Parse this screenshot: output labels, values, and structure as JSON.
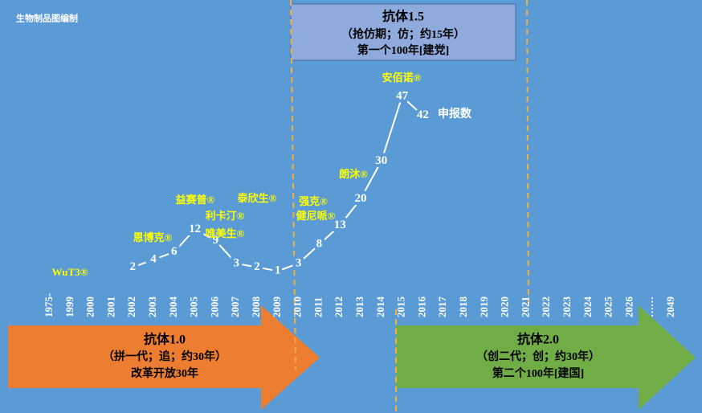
{
  "header_note": "生物制品图编制",
  "chart_data": {
    "type": "line",
    "series_label": "申报数",
    "categories": [
      "1975-",
      "1999",
      "2000",
      "2001",
      "2002",
      "2003",
      "2004",
      "2005",
      "2006",
      "2007",
      "2008",
      "2009",
      "2010",
      "2011",
      "2012",
      "2013",
      "2014",
      "2015",
      "2016",
      "2017",
      "2018",
      "2019",
      "2020",
      "2021",
      "2022",
      "2023",
      "2024",
      "2025",
      "2026",
      "……",
      "2049"
    ],
    "values": [
      null,
      null,
      null,
      null,
      2,
      4,
      6,
      12,
      9,
      3,
      2,
      1,
      3,
      8,
      13,
      20,
      30,
      47,
      42,
      null,
      null,
      null,
      null,
      null,
      null,
      null,
      null,
      null,
      null,
      null,
      null
    ],
    "ylim": [
      0,
      50
    ],
    "color": "#ffffff",
    "annotations": [
      "WuT3®",
      "恩博克®",
      "益赛普®",
      "利卡汀®",
      "唯美生®",
      "泰欣生®",
      "强克®",
      "健尼哌®",
      "朗沐®",
      "安佰诺®"
    ]
  },
  "phases": [
    {
      "title": "抗体1.0",
      "subtitle": "（拼一代；追；约30年）",
      "note": "改革开放30年",
      "color": "#ed7d31"
    },
    {
      "title": "抗体1.5",
      "subtitle": "（抢仿期；仿；约15年）",
      "note": "第一个100年[建党]",
      "color": "#8faadc"
    },
    {
      "title": "抗体2.0",
      "subtitle": "（创二代；创；约30年）",
      "note": "第二个100年[建国]",
      "color": "#70ad47"
    }
  ]
}
